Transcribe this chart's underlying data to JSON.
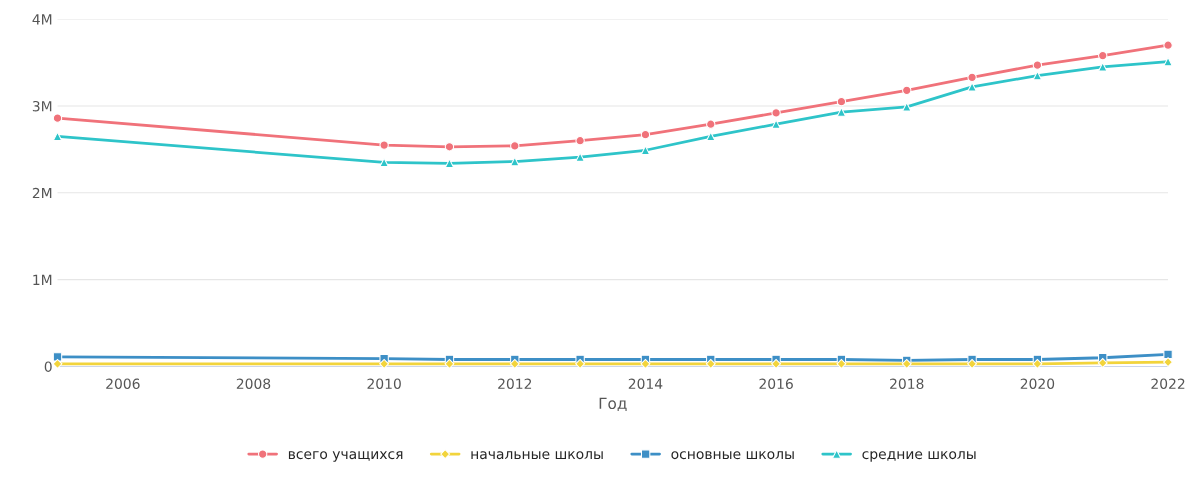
{
  "chart_data": {
    "type": "line",
    "xlabel": "Год",
    "x": [
      2005,
      2010,
      2011,
      2012,
      2013,
      2014,
      2015,
      2016,
      2017,
      2018,
      2019,
      2020,
      2021,
      2022
    ],
    "series": [
      {
        "name": "всего учащихся",
        "color": "#f0727a",
        "marker": "circle",
        "values": [
          2860000,
          2550000,
          2530000,
          2540000,
          2600000,
          2670000,
          2790000,
          2920000,
          3050000,
          3180000,
          3330000,
          3470000,
          3580000,
          3700000
        ]
      },
      {
        "name": "начальные школы",
        "color": "#f2d43c",
        "marker": "diamond",
        "values": [
          30000,
          30000,
          30000,
          30000,
          30000,
          30000,
          30000,
          30000,
          30000,
          30000,
          30000,
          30000,
          40000,
          50000
        ]
      },
      {
        "name": "основные школы",
        "color": "#3d8fc6",
        "marker": "square",
        "values": [
          110000,
          90000,
          80000,
          80000,
          80000,
          80000,
          80000,
          80000,
          80000,
          70000,
          80000,
          80000,
          100000,
          140000
        ]
      },
      {
        "name": "средние школы",
        "color": "#2ec4c9",
        "marker": "triangle",
        "values": [
          2650000,
          2350000,
          2340000,
          2360000,
          2410000,
          2490000,
          2650000,
          2790000,
          2930000,
          2990000,
          3220000,
          3350000,
          3450000,
          3510000
        ]
      }
    ],
    "xlim": [
      2005,
      2022
    ],
    "xticks": [
      2006,
      2008,
      2010,
      2012,
      2014,
      2016,
      2018,
      2020,
      2022
    ],
    "ylim": [
      0,
      4000000
    ],
    "yticks": [
      {
        "value": 0,
        "label": "0"
      },
      {
        "value": 1000000,
        "label": "1M"
      },
      {
        "value": 2000000,
        "label": "2M"
      },
      {
        "value": 3000000,
        "label": "3M"
      },
      {
        "value": 4000000,
        "label": "4M"
      }
    ],
    "grid": "y",
    "legend": "bottom",
    "line_style": "solid"
  }
}
